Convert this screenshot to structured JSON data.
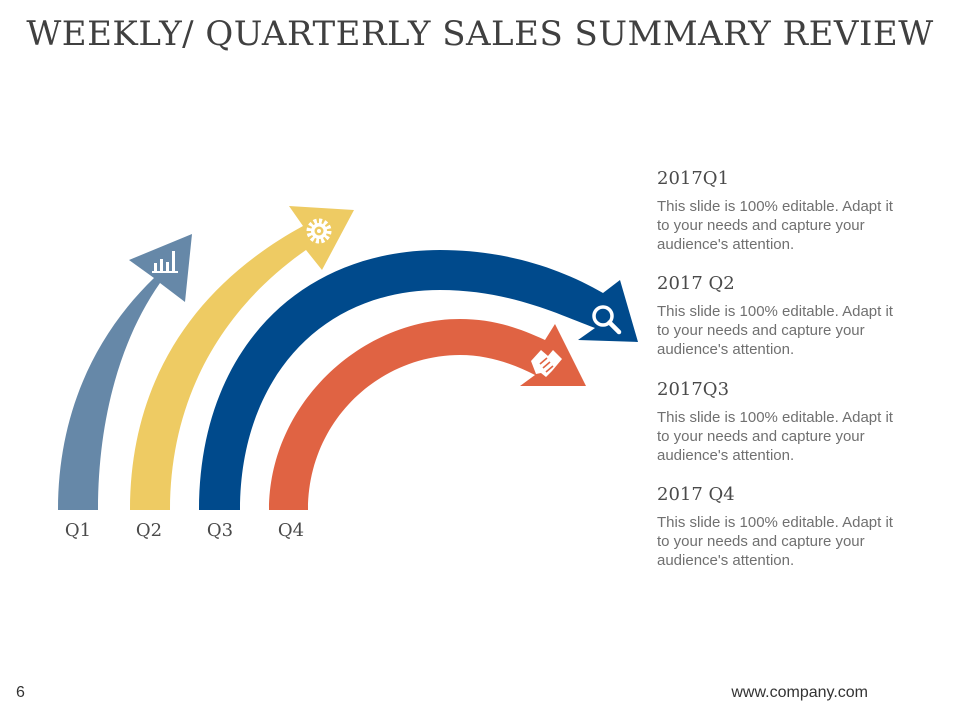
{
  "title": "WEEKLY/ QUARTERLY SALES SUMMARY REVIEW",
  "quarters": [
    {
      "label": "Q1",
      "color": "#6688a8",
      "icon": "bar-chart-icon"
    },
    {
      "label": "Q2",
      "color": "#eecb63",
      "icon": "gear-icon"
    },
    {
      "label": "Q3",
      "color": "#004a8c",
      "icon": "magnifier-icon"
    },
    {
      "label": "Q4",
      "color": "#e06343",
      "icon": "handshake-icon"
    }
  ],
  "blocks": [
    {
      "title": "2017Q1",
      "text": "This slide is 100% editable. Adapt it to your needs and capture your audience's attention."
    },
    {
      "title": "2017 Q2",
      "text": "This slide is 100% editable. Adapt it to your needs and capture your audience's attention."
    },
    {
      "title": "2017Q3",
      "text": "This slide is 100% editable. Adapt it to your needs and capture your audience's attention."
    },
    {
      "title": "2017 Q4",
      "text": "This slide is 100% editable. Adapt it to your needs and capture your audience's attention."
    }
  ],
  "footer": {
    "page": "6",
    "url": "www.company.com"
  }
}
